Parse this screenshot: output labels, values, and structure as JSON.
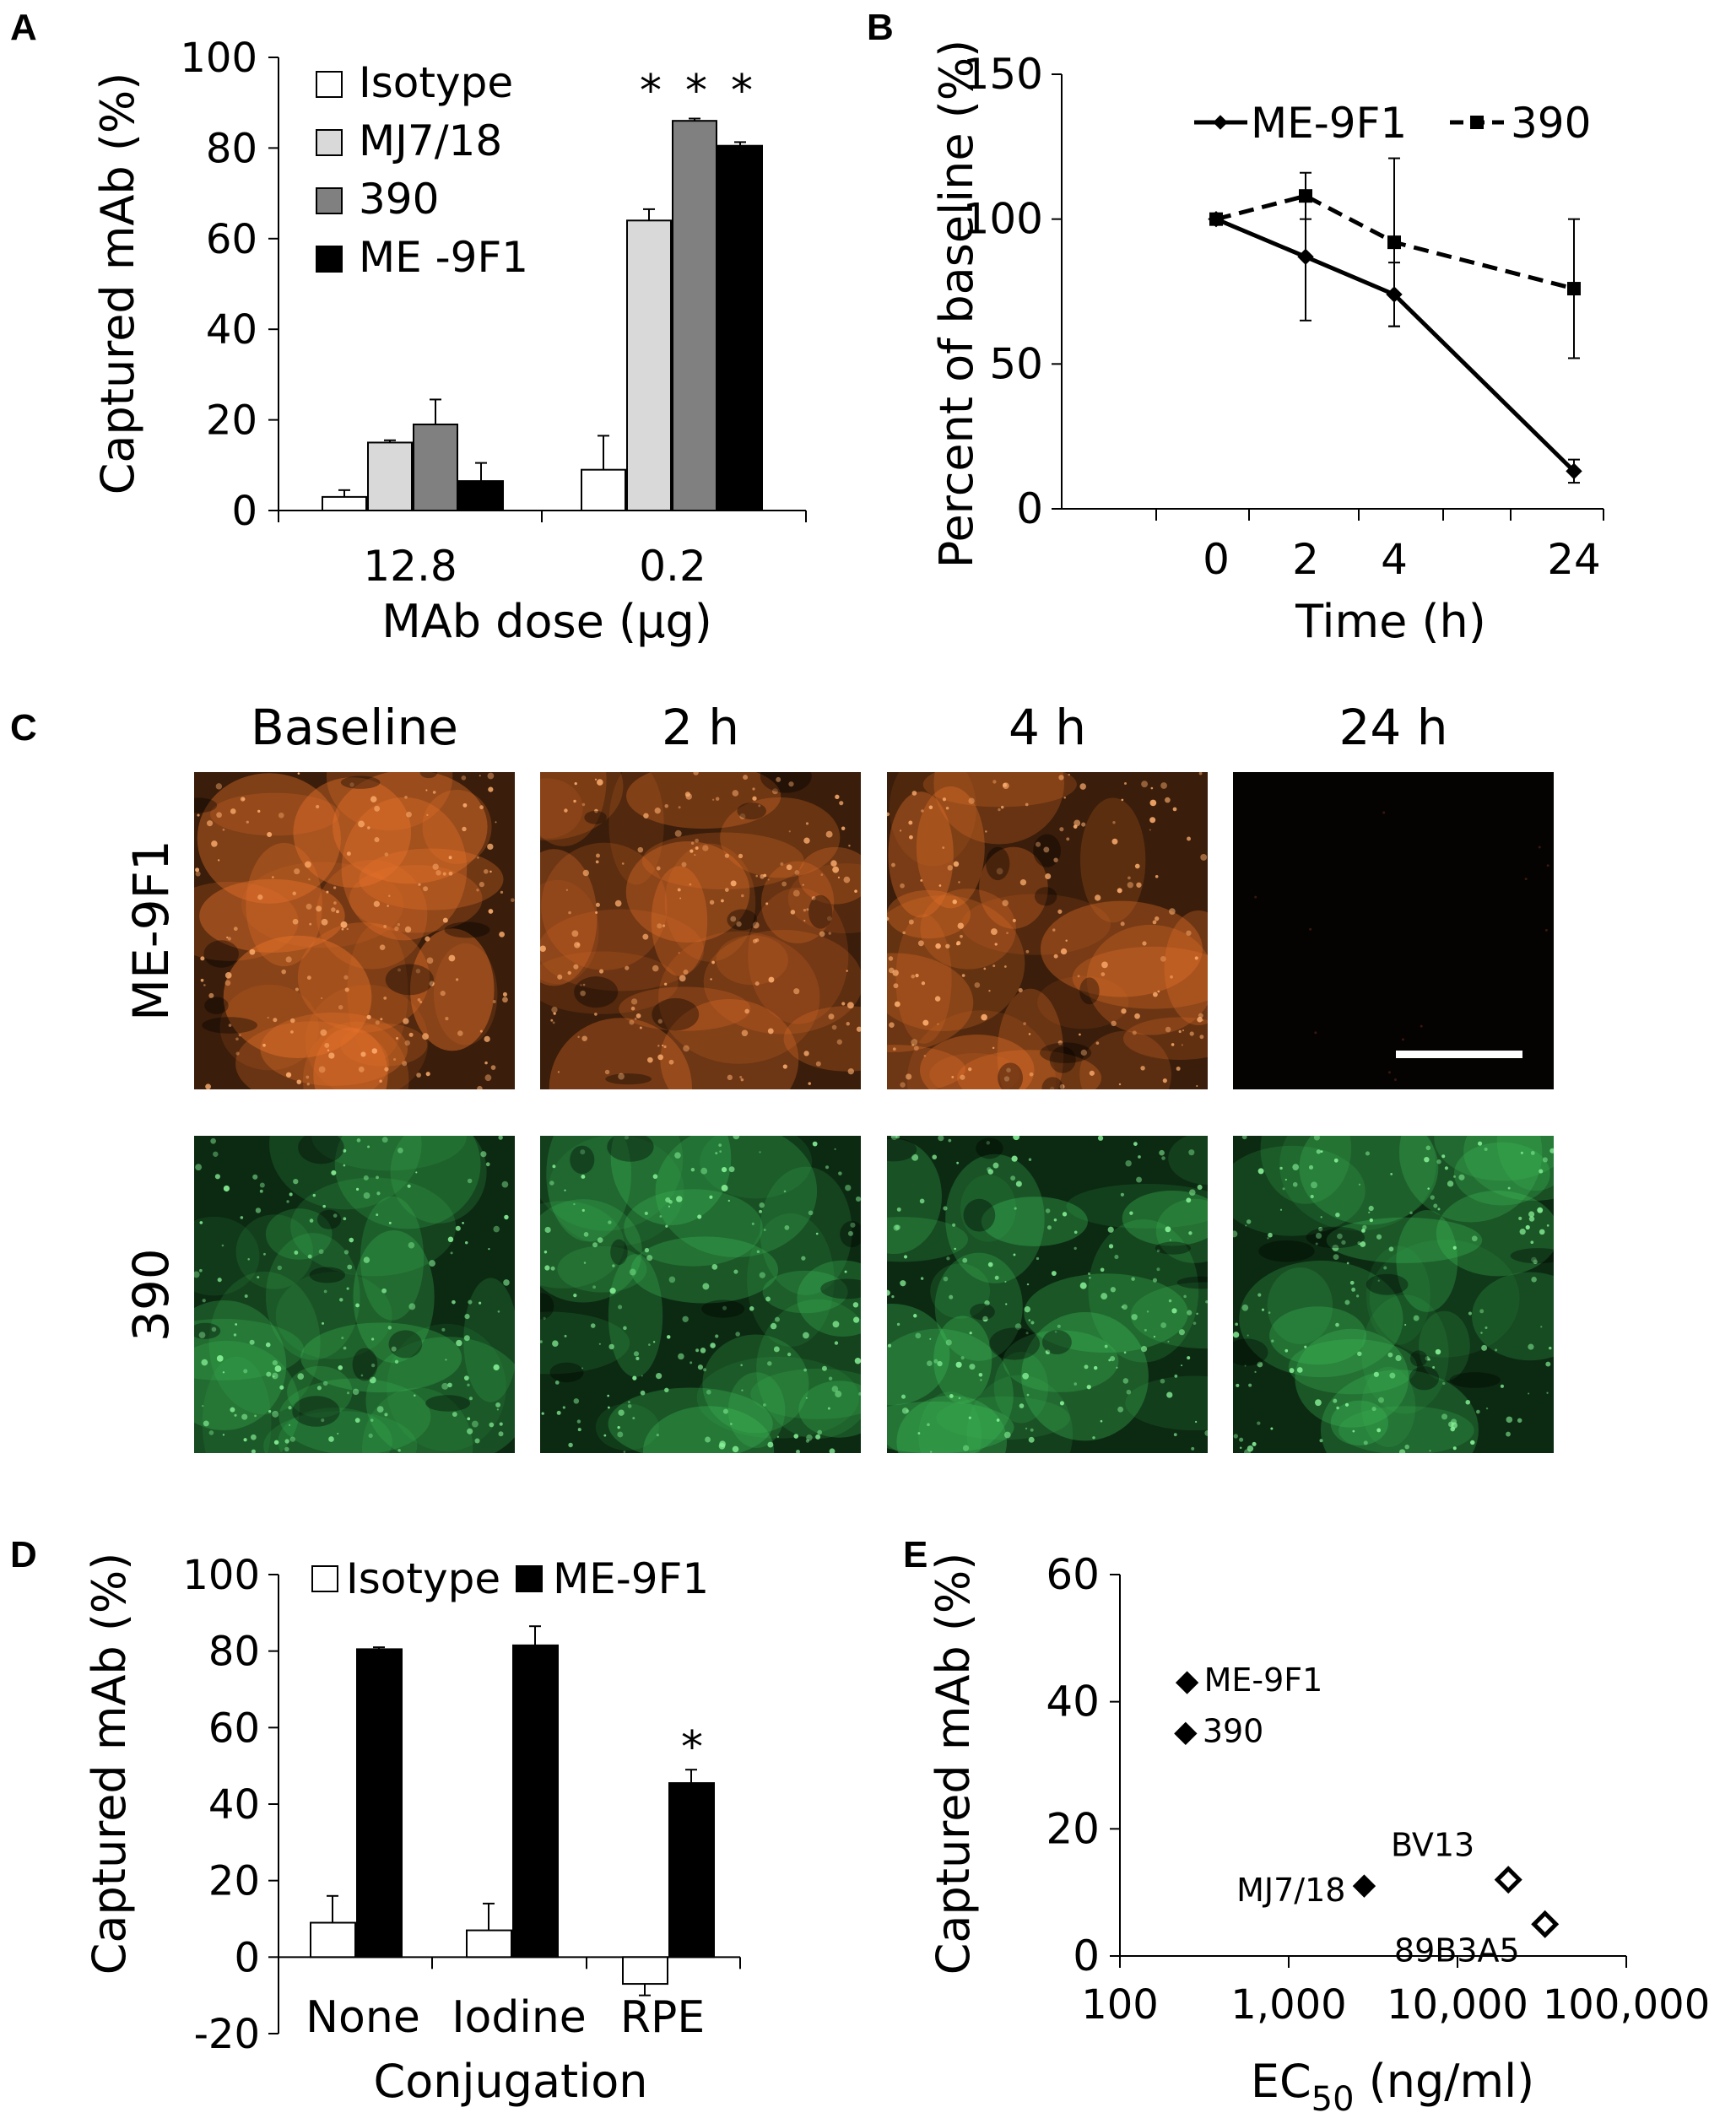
{
  "panel_letters": [
    "A",
    "B",
    "C",
    "D",
    "E"
  ],
  "chart_data": [
    {
      "panel": "A",
      "type": "bar",
      "ylabel": "Captured mAb (%)",
      "xlabel": "MAb dose (µg)",
      "ylim": [
        0,
        100
      ],
      "yticks": [
        0,
        20,
        40,
        60,
        80,
        100
      ],
      "categories": [
        "12.8",
        "0.2"
      ],
      "series": [
        {
          "name": "Isotype",
          "color": "#ffffff",
          "values": [
            3,
            9
          ],
          "errors": [
            1.5,
            7.5
          ]
        },
        {
          "name": "MJ7/18",
          "color": "#d9d9d9",
          "values": [
            15,
            64
          ],
          "errors": [
            0.5,
            2.5
          ]
        },
        {
          "name": "390",
          "color": "#808080",
          "values": [
            19,
            86
          ],
          "errors": [
            5.5,
            0.5
          ]
        },
        {
          "name": "ME -9F1",
          "color": "#000000",
          "values": [
            6.5,
            80.5
          ],
          "errors": [
            4,
            0.8
          ]
        }
      ],
      "annotations": [
        "*",
        "*",
        "*"
      ],
      "legend": "top-left",
      "grid": false
    },
    {
      "panel": "B",
      "type": "line",
      "ylabel": "Percent of baseline (%)",
      "xlabel": "Time (h)",
      "ylim": [
        0,
        150
      ],
      "yticks": [
        0,
        50,
        100,
        150
      ],
      "categories": [
        "0",
        "2",
        "4",
        "24"
      ],
      "series": [
        {
          "name": "ME-9F1",
          "style": "solid",
          "marker": "diamond",
          "values": [
            100,
            87,
            74,
            13
          ],
          "errors": [
            0,
            22,
            11,
            4
          ]
        },
        {
          "name": "390",
          "style": "dashed",
          "marker": "square",
          "values": [
            100,
            108,
            92,
            76
          ],
          "errors": [
            0,
            8,
            29,
            24
          ]
        }
      ],
      "legend": "top",
      "grid": false
    },
    {
      "panel": "D",
      "type": "bar",
      "ylabel": "Captured mAb (%)",
      "xlabel": "Conjugation",
      "ylim": [
        -20,
        100
      ],
      "yticks": [
        -20,
        0,
        20,
        40,
        60,
        80,
        100
      ],
      "categories": [
        "None",
        "Iodine",
        "RPE"
      ],
      "series": [
        {
          "name": "Isotype",
          "color": "#ffffff",
          "values": [
            9,
            7,
            -7
          ],
          "errors": [
            7,
            7,
            3
          ]
        },
        {
          "name": "ME-9F1",
          "color": "#000000",
          "values": [
            80.5,
            81.5,
            45.5
          ],
          "errors": [
            0.5,
            5,
            3.5
          ]
        }
      ],
      "annotations": [
        "*"
      ],
      "legend": "top",
      "grid": false
    },
    {
      "panel": "E",
      "type": "scatter",
      "ylabel": "Captured mAb (%)",
      "xlabel_main": "EC",
      "xlabel_sub": "50",
      "xlabel_unit": " (ng/ml)",
      "xscale": "log",
      "xlim": [
        100,
        100000
      ],
      "xticks": [
        "100",
        "1,000",
        "10,000",
        "100,000"
      ],
      "ylim": [
        0,
        60
      ],
      "yticks": [
        0,
        20,
        40,
        60
      ],
      "points": [
        {
          "label": "ME-9F1",
          "x": 250,
          "y": 43,
          "filled": true
        },
        {
          "label": "390",
          "x": 245,
          "y": 35,
          "filled": true
        },
        {
          "label": "MJ7/18",
          "x": 2800,
          "y": 11,
          "filled": true
        },
        {
          "label": "BV13",
          "x": 20000,
          "y": 12,
          "filled": false
        },
        {
          "label": "89B3A5",
          "x": 33000,
          "y": 5,
          "filled": false
        }
      ],
      "grid": false
    }
  ],
  "panel_c": {
    "columns": [
      "Baseline",
      "2 h",
      "4 h",
      "24 h"
    ],
    "rows": [
      {
        "label": "ME-9F1",
        "stain": "orange",
        "intensity": [
          0.9,
          0.7,
          0.75,
          0.05
        ]
      },
      {
        "label": "390",
        "stain": "green",
        "intensity": [
          0.6,
          0.65,
          0.7,
          0.6
        ]
      }
    ],
    "scale_bar": true,
    "colors": {
      "orange": "#e8732b",
      "green": "#3fc25a"
    }
  }
}
